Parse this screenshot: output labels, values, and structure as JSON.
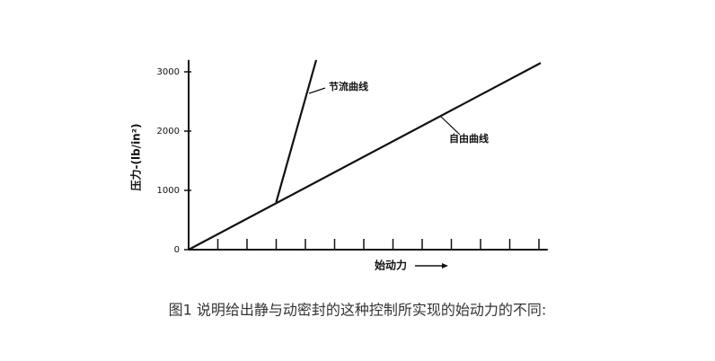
{
  "chart_data": {
    "type": "line",
    "x_label": "始动力",
    "y_label": "压力-(lb/in²)",
    "caption": "图1 说明给出静与动密封的这种控制所实现的始动力的不同:",
    "xlim": [
      0,
      12.3
    ],
    "xticks": [
      1,
      2,
      3,
      4,
      5,
      6,
      7,
      8,
      9,
      10,
      11,
      12
    ],
    "ylim": [
      0,
      3200
    ],
    "yticks": [
      0,
      1000,
      2000,
      3000
    ],
    "series": [
      {
        "name": "节流曲线",
        "color": "#111111",
        "x": [
          3.0,
          4.37
        ],
        "values": [
          800,
          3200
        ]
      },
      {
        "name": "自由曲线",
        "color": "#111111",
        "x": [
          0,
          12.06
        ],
        "values": [
          0,
          3150
        ]
      }
    ]
  }
}
